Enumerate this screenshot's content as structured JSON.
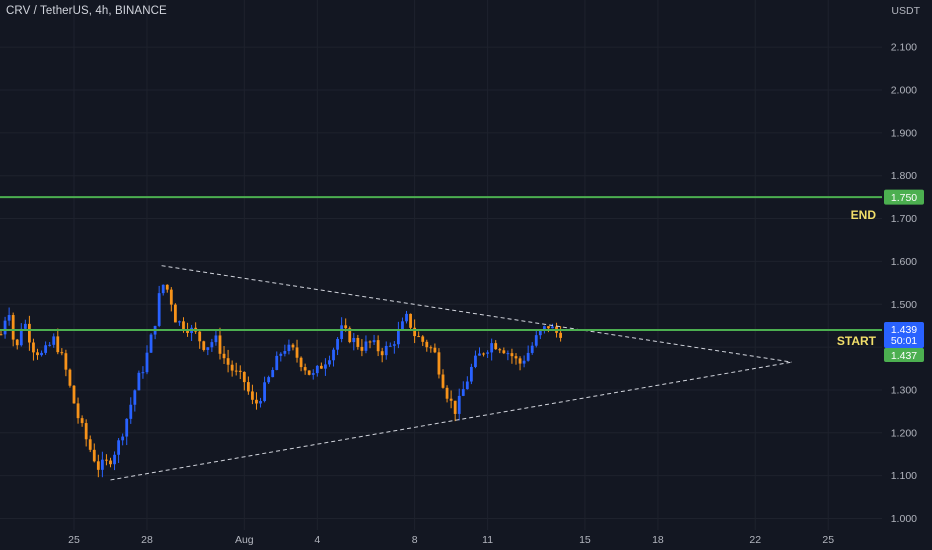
{
  "header": {
    "symbol_title": "CRV / TetherUS, 4h, BINANCE",
    "axis_unit": "USDT"
  },
  "colors": {
    "background": "#131722",
    "grid": "#1e222d",
    "up_candle": "#2962ff",
    "down_candle": "#f7931a",
    "level_line": "#4caf50",
    "triangle_line": "#d1d4dc",
    "annotation": "#f2df6a",
    "price_tag_blue": "#2962ff",
    "price_tag_green": "#4caf50"
  },
  "chart_data": {
    "type": "candlestick",
    "title": "CRV / TetherUS, 4h, BINANCE",
    "ylabel": "USDT",
    "ylim": [
      0.98,
      2.19
    ],
    "grid": true,
    "y_ticks": [
      "1.000",
      "1.100",
      "1.200",
      "1.300",
      "1.400",
      "1.500",
      "1.600",
      "1.700",
      "1.800",
      "1.900",
      "2.000",
      "2.100"
    ],
    "x_ticks": [
      {
        "label": "25",
        "day": 25
      },
      {
        "label": "28",
        "day": 28
      },
      {
        "label": "Aug",
        "day": 32
      },
      {
        "label": "4",
        "day": 35
      },
      {
        "label": "8",
        "day": 39
      },
      {
        "label": "11",
        "day": 42
      },
      {
        "label": "15",
        "day": 46
      },
      {
        "label": "18",
        "day": 49
      },
      {
        "label": "22",
        "day": 53
      },
      {
        "label": "25",
        "day": 56
      }
    ],
    "price_path": [
      [
        22.0,
        1.43
      ],
      [
        22.3,
        1.5
      ],
      [
        22.6,
        1.38
      ],
      [
        22.9,
        1.47
      ],
      [
        23.3,
        1.4
      ],
      [
        23.7,
        1.38
      ],
      [
        24.2,
        1.42
      ],
      [
        24.6,
        1.36
      ],
      [
        24.9,
        1.29
      ],
      [
        25.2,
        1.23
      ],
      [
        25.6,
        1.17
      ],
      [
        26.0,
        1.12
      ],
      [
        26.4,
        1.13
      ],
      [
        26.8,
        1.17
      ],
      [
        27.2,
        1.24
      ],
      [
        27.6,
        1.32
      ],
      [
        27.9,
        1.36
      ],
      [
        28.3,
        1.45
      ],
      [
        28.6,
        1.55
      ],
      [
        28.9,
        1.53
      ],
      [
        29.2,
        1.46
      ],
      [
        29.6,
        1.45
      ],
      [
        30.0,
        1.43
      ],
      [
        30.4,
        1.4
      ],
      [
        30.8,
        1.42
      ],
      [
        31.2,
        1.37
      ],
      [
        31.6,
        1.34
      ],
      [
        32.0,
        1.32
      ],
      [
        32.4,
        1.26
      ],
      [
        32.8,
        1.3
      ],
      [
        33.2,
        1.35
      ],
      [
        33.6,
        1.4
      ],
      [
        34.0,
        1.39
      ],
      [
        34.4,
        1.36
      ],
      [
        34.8,
        1.33
      ],
      [
        35.2,
        1.36
      ],
      [
        35.6,
        1.39
      ],
      [
        36.0,
        1.44
      ],
      [
        36.4,
        1.42
      ],
      [
        36.8,
        1.4
      ],
      [
        37.2,
        1.41
      ],
      [
        37.6,
        1.39
      ],
      [
        38.0,
        1.4
      ],
      [
        38.4,
        1.44
      ],
      [
        38.7,
        1.47
      ],
      [
        39.0,
        1.43
      ],
      [
        39.4,
        1.41
      ],
      [
        39.8,
        1.39
      ],
      [
        40.1,
        1.33
      ],
      [
        40.4,
        1.28
      ],
      [
        40.7,
        1.25
      ],
      [
        41.0,
        1.3
      ],
      [
        41.4,
        1.36
      ],
      [
        41.8,
        1.39
      ],
      [
        42.2,
        1.41
      ],
      [
        42.6,
        1.4
      ],
      [
        43.0,
        1.38
      ],
      [
        43.3,
        1.36
      ],
      [
        43.7,
        1.39
      ],
      [
        44.1,
        1.43
      ],
      [
        44.5,
        1.45
      ],
      [
        44.9,
        1.43
      ],
      [
        45.1,
        1.44
      ]
    ],
    "levels": [
      {
        "name": "END",
        "price": 1.75,
        "tag": "1.750"
      },
      {
        "name": "START",
        "price": 1.44
      }
    ],
    "last_price": {
      "value": "1.439",
      "countdown": "50:01"
    },
    "start_tag": "1.437",
    "triangle": {
      "upper": {
        "start": [
          28.6,
          1.59
        ],
        "end": [
          54.5,
          1.365
        ]
      },
      "lower": {
        "start": [
          26.5,
          1.09
        ],
        "end": [
          54.5,
          1.365
        ]
      }
    },
    "annotations": [
      {
        "text": "END",
        "price": 1.71
      },
      {
        "text": "START",
        "price": 1.415
      }
    ]
  }
}
